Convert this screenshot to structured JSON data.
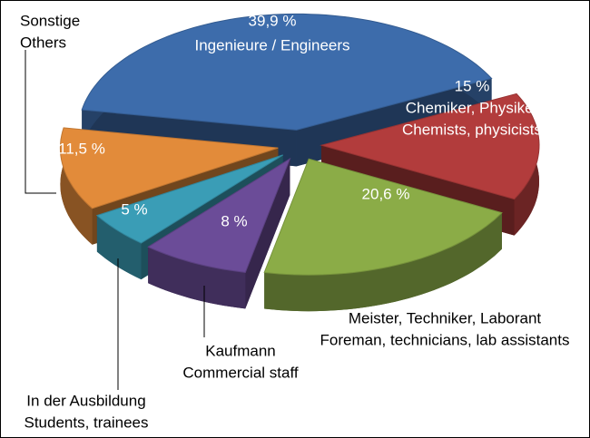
{
  "chart_data": {
    "type": "pie",
    "categories": [
      [
        "Ingenieure / Engineers"
      ],
      [
        "Chemiker, Physiker",
        "Chemists, physicists"
      ],
      [
        "Meister, Techniker, Laborant",
        "Foreman, technicians, lab assistants"
      ],
      [
        "Kaufmann",
        "Commercial staff"
      ],
      [
        "In der Ausbildung",
        "Students, trainees"
      ],
      [
        "Sonstige",
        "Others"
      ]
    ],
    "values": [
      39.9,
      15,
      20.6,
      8,
      5,
      11.5
    ],
    "value_labels": [
      "39,9 %",
      "15 %",
      "20,6 %",
      "8 %",
      "5 %",
      "11,5 %"
    ],
    "colors": [
      "#3d6cab",
      "#b23c3c",
      "#8bac47",
      "#6b4c98",
      "#3a9db6",
      "#e28b3a"
    ]
  }
}
